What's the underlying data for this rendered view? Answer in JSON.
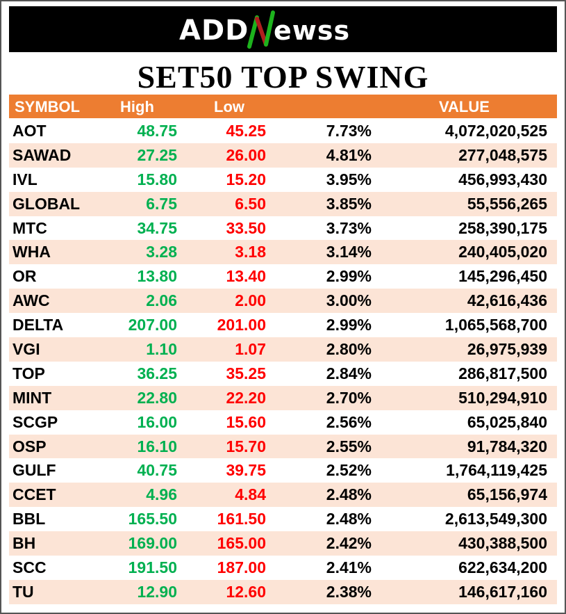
{
  "brand": {
    "logo_text": "ADDNewss",
    "logo_colors": {
      "green": "#1DB31D",
      "red": "#B01E1E"
    }
  },
  "title": "SET50 TOP SWING",
  "colors": {
    "header_bg": "#ED7D31",
    "alt_row_bg": "#FCE4D6",
    "high": "#00B050",
    "low": "#FF0000"
  },
  "chart_data": {
    "type": "table",
    "title": "SET50 TOP SWING",
    "columns": [
      "SYMBOL",
      "High",
      "Low",
      "",
      "VALUE"
    ],
    "rows": [
      [
        "AOT",
        "48.75",
        "45.25",
        "7.73%",
        "4,072,020,525"
      ],
      [
        "SAWAD",
        "27.25",
        "26.00",
        "4.81%",
        "277,048,575"
      ],
      [
        "IVL",
        "15.80",
        "15.20",
        "3.95%",
        "456,993,430"
      ],
      [
        "GLOBAL",
        "6.75",
        "6.50",
        "3.85%",
        "55,556,265"
      ],
      [
        "MTC",
        "34.75",
        "33.50",
        "3.73%",
        "258,390,175"
      ],
      [
        "WHA",
        "3.28",
        "3.18",
        "3.14%",
        "240,405,020"
      ],
      [
        "OR",
        "13.80",
        "13.40",
        "2.99%",
        "145,296,450"
      ],
      [
        "AWC",
        "2.06",
        "2.00",
        "3.00%",
        "42,616,436"
      ],
      [
        "DELTA",
        "207.00",
        "201.00",
        "2.99%",
        "1,065,568,700"
      ],
      [
        "VGI",
        "1.10",
        "1.07",
        "2.80%",
        "26,975,939"
      ],
      [
        "TOP",
        "36.25",
        "35.25",
        "2.84%",
        "286,817,500"
      ],
      [
        "MINT",
        "22.80",
        "22.20",
        "2.70%",
        "510,294,910"
      ],
      [
        "SCGP",
        "16.00",
        "15.60",
        "2.56%",
        "65,025,840"
      ],
      [
        "OSP",
        "16.10",
        "15.70",
        "2.55%",
        "91,784,320"
      ],
      [
        "GULF",
        "40.75",
        "39.75",
        "2.52%",
        "1,764,119,425"
      ],
      [
        "CCET",
        "4.96",
        "4.84",
        "2.48%",
        "65,156,974"
      ],
      [
        "BBL",
        "165.50",
        "161.50",
        "2.48%",
        "2,613,549,300"
      ],
      [
        "BH",
        "169.00",
        "165.00",
        "2.42%",
        "430,388,500"
      ],
      [
        "SCC",
        "191.50",
        "187.00",
        "2.41%",
        "622,634,200"
      ],
      [
        "TU",
        "12.90",
        "12.60",
        "2.38%",
        "146,617,160"
      ]
    ]
  }
}
